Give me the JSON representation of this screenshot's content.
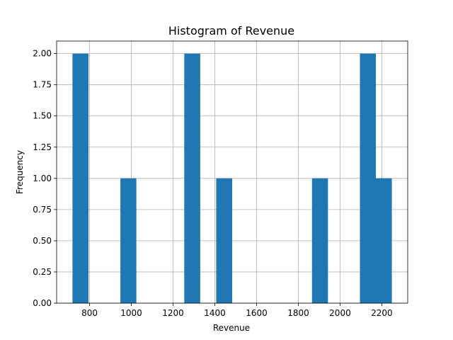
{
  "chart_data": {
    "type": "bar",
    "title": "Histogram of Revenue",
    "xlabel": "Revenue",
    "ylabel": "Frequency",
    "xlim": [
      642,
      2324
    ],
    "ylim": [
      0,
      2.1
    ],
    "grid": true,
    "bar_color": "#1f77b4",
    "bin_width": 76.5,
    "bins": [
      {
        "start": 718,
        "end": 794.5,
        "count": 2
      },
      {
        "start": 947.5,
        "end": 1024,
        "count": 1
      },
      {
        "start": 1253.5,
        "end": 1330,
        "count": 2
      },
      {
        "start": 1406.5,
        "end": 1483,
        "count": 1
      },
      {
        "start": 1865.5,
        "end": 1942,
        "count": 1
      },
      {
        "start": 2095,
        "end": 2171.5,
        "count": 2
      },
      {
        "start": 2171.5,
        "end": 2248,
        "count": 1
      }
    ],
    "xticks": [
      800,
      1000,
      1200,
      1400,
      1600,
      1800,
      2000,
      2200
    ],
    "xtick_labels": [
      "800",
      "1000",
      "1200",
      "1400",
      "1600",
      "1800",
      "2000",
      "2200"
    ],
    "yticks": [
      0,
      0.25,
      0.5,
      0.75,
      1.0,
      1.25,
      1.5,
      1.75,
      2.0
    ],
    "ytick_labels": [
      "0.00",
      "0.25",
      "0.50",
      "0.75",
      "1.00",
      "1.25",
      "1.50",
      "1.75",
      "2.00"
    ]
  }
}
